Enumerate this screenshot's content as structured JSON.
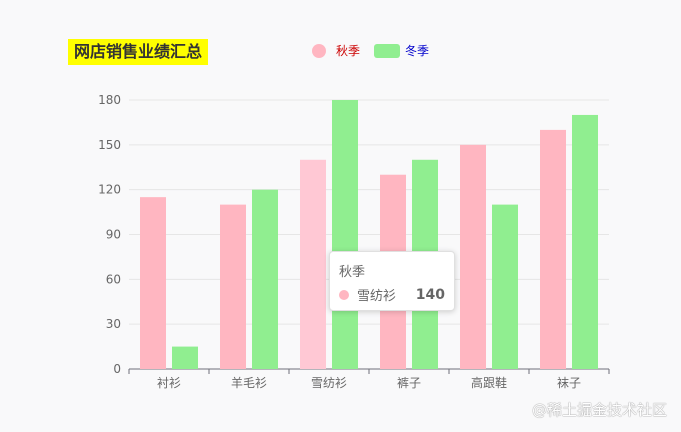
{
  "title": "网店销售业绩汇总",
  "legend": [
    {
      "name": "秋季",
      "color": "#ffb6c1",
      "text_color": "#cc0000",
      "shape": "circle"
    },
    {
      "name": "冬季",
      "color": "#90ee90",
      "text_color": "#0000cc",
      "shape": "rect"
    }
  ],
  "tooltip": {
    "title": "秋季",
    "item": "雪纺衫",
    "value": "140",
    "color": "#ffb6c1"
  },
  "watermark": "@稀土掘金技术社区",
  "chart_data": {
    "type": "bar",
    "categories": [
      "衬衫",
      "羊毛衫",
      "雪纺衫",
      "裤子",
      "高跟鞋",
      "袜子"
    ],
    "series": [
      {
        "name": "秋季",
        "color": "#ffb6c1",
        "values": [
          115,
          110,
          140,
          130,
          150,
          160
        ]
      },
      {
        "name": "冬季",
        "color": "#90ee90",
        "values": [
          15,
          120,
          180,
          140,
          110,
          170
        ]
      }
    ],
    "ylim": [
      0,
      180
    ],
    "yticks": [
      0,
      30,
      60,
      90,
      120,
      150,
      180
    ],
    "grid": true,
    "highlight": {
      "series": 0,
      "index": 2,
      "color": "#ffc8d4"
    }
  }
}
